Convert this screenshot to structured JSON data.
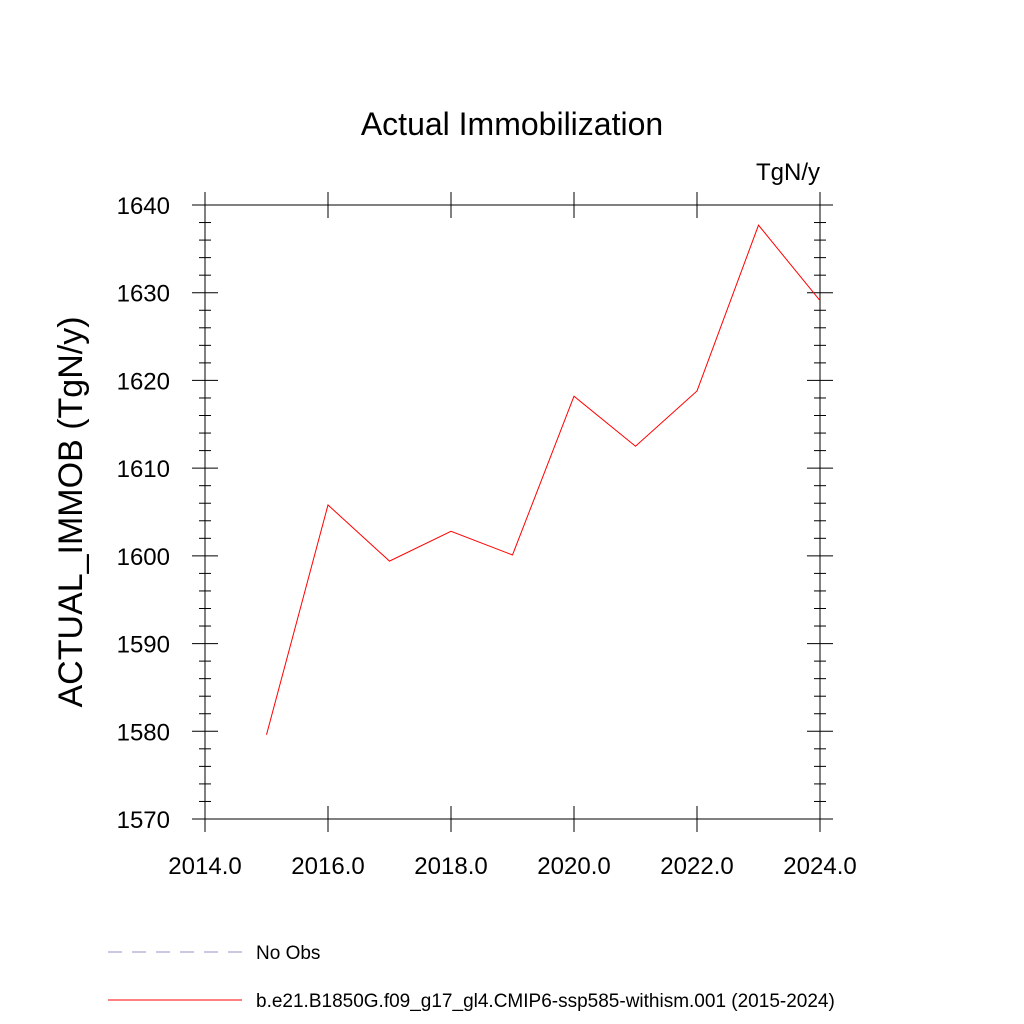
{
  "chart_data": {
    "type": "line",
    "title": "Actual Immobilization",
    "units_label": "TgN/y",
    "ylabel": "ACTUAL_IMMOB  (TgN/y)",
    "xlabel": "",
    "xlim": [
      2014.0,
      2024.0
    ],
    "ylim": [
      1570,
      1640
    ],
    "x_ticks": [
      2014.0,
      2016.0,
      2018.0,
      2020.0,
      2022.0,
      2024.0
    ],
    "x_tick_labels": [
      "2014.0",
      "2016.0",
      "2018.0",
      "2020.0",
      "2022.0",
      "2024.0"
    ],
    "y_ticks": [
      1570,
      1580,
      1590,
      1600,
      1610,
      1620,
      1630,
      1640
    ],
    "y_tick_labels": [
      "1570",
      "1580",
      "1590",
      "1600",
      "1610",
      "1620",
      "1630",
      "1640"
    ],
    "grid": false,
    "legend_position": "bottom",
    "series": [
      {
        "name": "b.e21.B1850G.f09_g17_gl4.CMIP6-ssp585-withism.001 (2015-2024)",
        "color": "#ff0000",
        "style": "solid",
        "x": [
          2015,
          2016,
          2017,
          2018,
          2019,
          2020,
          2021,
          2022,
          2023,
          2024
        ],
        "y": [
          1579.6,
          1605.8,
          1599.4,
          1602.8,
          1600.1,
          1618.2,
          1612.5,
          1618.8,
          1637.7,
          1629.1
        ]
      },
      {
        "name": "No Obs",
        "color": "#9a90c8",
        "style": "dashed",
        "x": [],
        "y": []
      }
    ]
  }
}
